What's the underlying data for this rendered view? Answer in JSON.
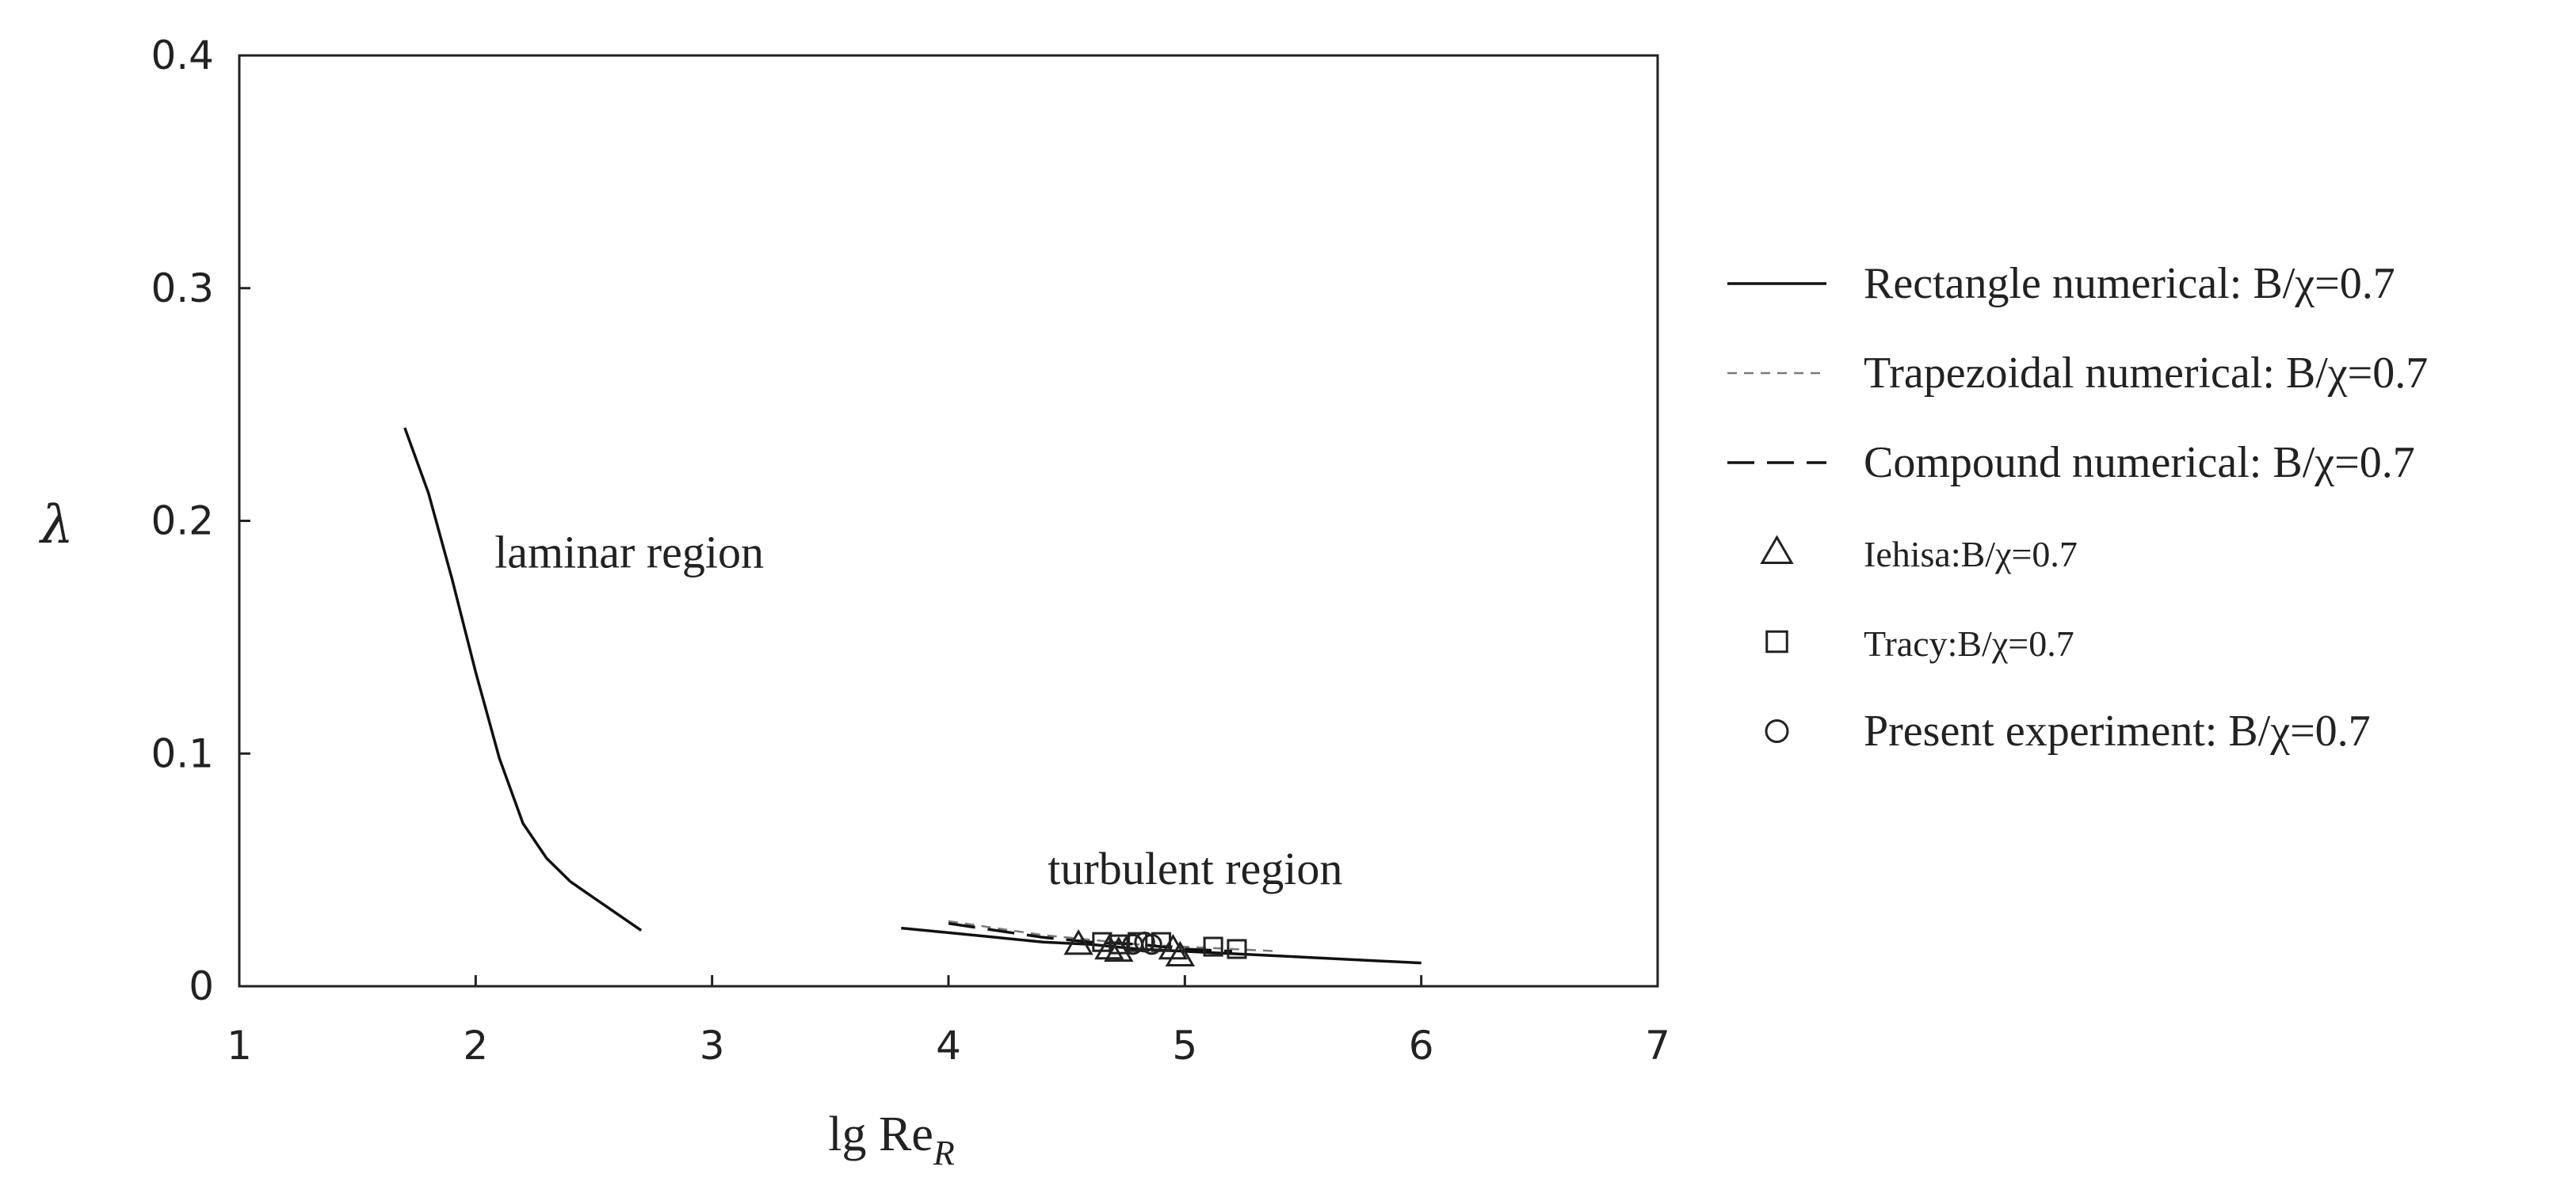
{
  "chart_data": {
    "type": "line",
    "title": "",
    "xlabel": "lg Re",
    "xlabel_subscript": "R",
    "ylabel": "λ",
    "xlim": [
      1,
      7
    ],
    "ylim": [
      0,
      0.4
    ],
    "xticks": [
      "1",
      "2",
      "3",
      "4",
      "5",
      "6",
      "7"
    ],
    "yticks": [
      "0",
      "0.1",
      "0.2",
      "0.3",
      "0.4"
    ],
    "grid": false,
    "legend_position": "right",
    "annotations": [
      {
        "text": "laminar region",
        "x": 2.08,
        "y": 0.18
      },
      {
        "text": "turbulent region",
        "x": 4.42,
        "y": 0.044
      }
    ],
    "series": [
      {
        "name": "Rectangle numerical:  B/χ=0.7",
        "style": "solid",
        "color": "#111111",
        "x": [
          1.7,
          1.8,
          1.9,
          2.0,
          2.1,
          2.2,
          2.3,
          2.4,
          2.5,
          2.6,
          2.7
        ],
        "y": [
          0.24,
          0.212,
          0.175,
          0.135,
          0.098,
          0.07,
          0.055,
          0.045,
          0.038,
          0.031,
          0.024
        ]
      },
      {
        "name": "",
        "style": "solid",
        "color": "#111111",
        "x": [
          3.8,
          4.0,
          4.2,
          4.4,
          4.6,
          4.8,
          5.0,
          5.2,
          5.4,
          5.6,
          5.8,
          6.0
        ],
        "y": [
          0.025,
          0.023,
          0.021,
          0.019,
          0.018,
          0.016,
          0.015,
          0.014,
          0.013,
          0.012,
          0.011,
          0.01
        ]
      },
      {
        "name": "Trapezoidal numerical:  B/χ=0.7",
        "style": "short-dash",
        "color": "#7a7a7a",
        "x": [
          4.0,
          4.2,
          4.4,
          4.6,
          4.8,
          5.0,
          5.2,
          5.4
        ],
        "y": [
          0.028,
          0.025,
          0.022,
          0.02,
          0.018,
          0.017,
          0.016,
          0.015
        ]
      },
      {
        "name": "Compound numerical:  B/χ=0.7",
        "style": "long-dash",
        "color": "#111111",
        "x": [
          4.0,
          4.2,
          4.4,
          4.6,
          4.8,
          5.0,
          5.2
        ],
        "y": [
          0.027,
          0.024,
          0.021,
          0.019,
          0.018,
          0.016,
          0.015
        ]
      },
      {
        "name": "Iehisa:B/χ=0.7",
        "style": "marker-triangle",
        "color": "#222222",
        "x": [
          4.55,
          4.68,
          4.72,
          4.95,
          4.98
        ],
        "y": [
          0.018,
          0.016,
          0.015,
          0.016,
          0.013
        ]
      },
      {
        "name": "Tracy:B/χ=0.7",
        "style": "marker-square",
        "color": "#222222",
        "x": [
          4.65,
          4.72,
          4.8,
          4.9,
          5.12,
          5.22
        ],
        "y": [
          0.019,
          0.018,
          0.019,
          0.019,
          0.017,
          0.016
        ]
      },
      {
        "name": "Present experiment:  B/χ=0.7",
        "style": "marker-circle",
        "color": "#222222",
        "x": [
          4.78,
          4.83,
          4.86
        ],
        "y": [
          0.018,
          0.019,
          0.018
        ]
      }
    ]
  }
}
